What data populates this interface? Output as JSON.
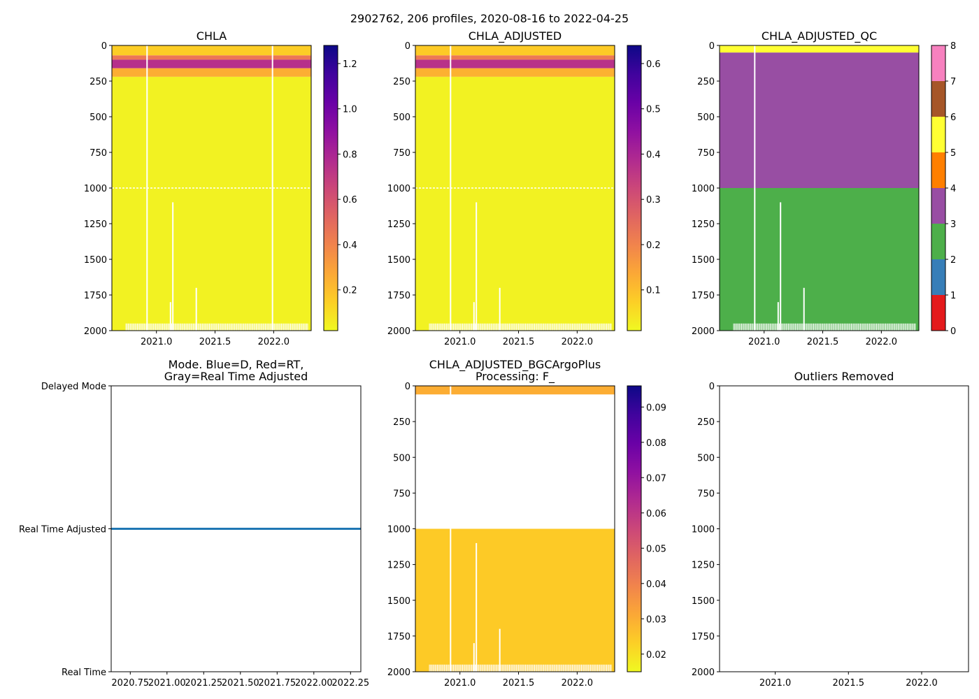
{
  "figure": {
    "title": "2902762, 206 profiles, 2020-08-16 to 2022-04-25"
  },
  "chart_data": [
    {
      "id": "chla",
      "type": "heatmap",
      "title": "CHLA",
      "xlim": [
        2020.62,
        2022.32
      ],
      "ylim": [
        2000,
        0
      ],
      "xticks": [
        "2021.0",
        "2021.5",
        "2022.0"
      ],
      "xtick_values": [
        2021.0,
        2021.5,
        2022.0
      ],
      "yticks": [
        "0",
        "250",
        "500",
        "750",
        "1000",
        "1250",
        "1500",
        "1750",
        "2000"
      ],
      "ytick_values": [
        0,
        250,
        500,
        750,
        1000,
        1250,
        1500,
        1750,
        2000
      ],
      "colormap": "plasma_r",
      "colorbar": {
        "min": 0.02,
        "max": 1.28,
        "ticks": [
          "0.2",
          "0.4",
          "0.6",
          "0.8",
          "1.0",
          "1.2"
        ],
        "tick_values": [
          0.2,
          0.4,
          0.6,
          0.8,
          1.0,
          1.2
        ]
      },
      "bands": [
        {
          "depth_from": 0,
          "depth_to": 70,
          "value": 0.15
        },
        {
          "depth_from": 70,
          "depth_to": 100,
          "value": 0.45
        },
        {
          "depth_from": 100,
          "depth_to": 160,
          "value": 0.75
        },
        {
          "depth_from": 160,
          "depth_to": 220,
          "value": 0.25
        },
        {
          "depth_from": 220,
          "depth_to": 2000,
          "value": 0.04
        }
      ],
      "missing_profiles": [
        2020.92,
        2021.99
      ],
      "missing_segments": [
        {
          "x": 2021.14,
          "depth_from": 1100,
          "depth_to": 2000
        },
        {
          "x": 2021.12,
          "depth_from": 1800,
          "depth_to": 2000
        },
        {
          "x": 2021.34,
          "depth_from": 1700,
          "depth_to": 2000
        }
      ],
      "gap_depth": 1000
    },
    {
      "id": "chla_adjusted",
      "type": "heatmap",
      "title": "CHLA_ADJUSTED",
      "xlim": [
        2020.62,
        2022.32
      ],
      "ylim": [
        2000,
        0
      ],
      "xticks": [
        "2021.0",
        "2021.5",
        "2022.0"
      ],
      "xtick_values": [
        2021.0,
        2021.5,
        2022.0
      ],
      "yticks": [
        "0",
        "250",
        "500",
        "750",
        "1000",
        "1250",
        "1500",
        "1750",
        "2000"
      ],
      "ytick_values": [
        0,
        250,
        500,
        750,
        1000,
        1250,
        1500,
        1750,
        2000
      ],
      "colormap": "plasma_r",
      "colorbar": {
        "min": 0.01,
        "max": 0.64,
        "ticks": [
          "0.1",
          "0.2",
          "0.3",
          "0.4",
          "0.5",
          "0.6"
        ],
        "tick_values": [
          0.1,
          0.2,
          0.3,
          0.4,
          0.5,
          0.6
        ]
      },
      "bands": [
        {
          "depth_from": 0,
          "depth_to": 70,
          "value": 0.08
        },
        {
          "depth_from": 70,
          "depth_to": 100,
          "value": 0.22
        },
        {
          "depth_from": 100,
          "depth_to": 160,
          "value": 0.37
        },
        {
          "depth_from": 160,
          "depth_to": 220,
          "value": 0.12
        },
        {
          "depth_from": 220,
          "depth_to": 2000,
          "value": 0.02
        }
      ],
      "missing_profiles": [
        2020.92
      ],
      "missing_segments": [
        {
          "x": 2021.14,
          "depth_from": 1100,
          "depth_to": 2000
        },
        {
          "x": 2021.12,
          "depth_from": 1800,
          "depth_to": 2000
        },
        {
          "x": 2021.34,
          "depth_from": 1700,
          "depth_to": 2000
        }
      ],
      "gap_depth": 1000
    },
    {
      "id": "chla_adjusted_qc",
      "type": "heatmap",
      "title": "CHLA_ADJUSTED_QC",
      "xlim": [
        2020.62,
        2022.32
      ],
      "ylim": [
        2000,
        0
      ],
      "xticks": [
        "2021.0",
        "2021.5",
        "2022.0"
      ],
      "xtick_values": [
        2021.0,
        2021.5,
        2022.0
      ],
      "yticks": [
        "0",
        "250",
        "500",
        "750",
        "1000",
        "1250",
        "1500",
        "1750",
        "2000"
      ],
      "ytick_values": [
        0,
        250,
        500,
        750,
        1000,
        1250,
        1500,
        1750,
        2000
      ],
      "colormap": "qc_categorical",
      "colorbar": {
        "min": 0,
        "max": 8,
        "ticks": [
          "0",
          "1",
          "2",
          "3",
          "4",
          "5",
          "6",
          "7",
          "8"
        ],
        "tick_values": [
          0,
          1,
          2,
          3,
          4,
          5,
          6,
          7,
          8
        ],
        "categories": [
          {
            "flag": 0,
            "color": "#e41a1c"
          },
          {
            "flag": 1,
            "color": "#377eb8"
          },
          {
            "flag": 2,
            "color": "#4daf4a"
          },
          {
            "flag": 3,
            "color": "#984ea3"
          },
          {
            "flag": 4,
            "color": "#ff7f00"
          },
          {
            "flag": 5,
            "color": "#ffff33"
          },
          {
            "flag": 6,
            "color": "#a65628"
          },
          {
            "flag": 7,
            "color": "#f781bf"
          },
          {
            "flag": 8,
            "color": "#999999"
          }
        ]
      },
      "qc_layers": [
        {
          "depth_from": 0,
          "depth_to": 50,
          "flag": 5
        },
        {
          "depth_from": 50,
          "depth_to": 1000,
          "flag": 3
        },
        {
          "depth_from": 1000,
          "depth_to": 2000,
          "flag": 2
        }
      ],
      "missing_profiles": [
        2020.92
      ],
      "missing_segments": [
        {
          "x": 2021.14,
          "depth_from": 1100,
          "depth_to": 2000
        },
        {
          "x": 2021.12,
          "depth_from": 1800,
          "depth_to": 2000
        },
        {
          "x": 2021.34,
          "depth_from": 1700,
          "depth_to": 2000
        }
      ]
    },
    {
      "id": "mode",
      "type": "line",
      "title": "Mode. Blue=D, Red=RT,\nGray=Real Time Adjusted",
      "xlim": [
        2020.62,
        2022.32
      ],
      "xticks": [
        "2020.75",
        "2021.00",
        "2021.25",
        "2021.50",
        "2021.75",
        "2022.00",
        "2022.25"
      ],
      "xtick_values": [
        2020.75,
        2021.0,
        2021.25,
        2021.5,
        2021.75,
        2022.0,
        2022.25
      ],
      "yticks": [
        "Real Time",
        "Real Time Adjusted",
        "Delayed Mode"
      ],
      "ytick_values": [
        0,
        1,
        2
      ],
      "ylim": [
        0,
        2
      ],
      "series": [
        {
          "name": "mode",
          "color": "#1f77b4",
          "x": [
            2020.62,
            2022.32
          ],
          "y": [
            1,
            1
          ]
        }
      ]
    },
    {
      "id": "bgcargoplus",
      "type": "heatmap",
      "title": "CHLA_ADJUSTED_BGCArgoPlus\nProcessing: F_",
      "xlim": [
        2020.62,
        2022.32
      ],
      "ylim": [
        2000,
        0
      ],
      "xticks": [
        "2021.0",
        "2021.5",
        "2022.0"
      ],
      "xtick_values": [
        2021.0,
        2021.5,
        2022.0
      ],
      "yticks": [
        "0",
        "250",
        "500",
        "750",
        "1000",
        "1250",
        "1500",
        "1750",
        "2000"
      ],
      "ytick_values": [
        0,
        250,
        500,
        750,
        1000,
        1250,
        1500,
        1750,
        2000
      ],
      "colormap": "plasma_r",
      "colorbar": {
        "min": 0.015,
        "max": 0.096,
        "ticks": [
          "0.02",
          "0.03",
          "0.04",
          "0.05",
          "0.06",
          "0.07",
          "0.08",
          "0.09"
        ],
        "tick_values": [
          0.02,
          0.03,
          0.04,
          0.05,
          0.06,
          0.07,
          0.08,
          0.09
        ]
      },
      "bands": [
        {
          "depth_from": 0,
          "depth_to": 60,
          "value": 0.03
        },
        {
          "depth_from": 1000,
          "depth_to": 2000,
          "value": 0.024
        }
      ],
      "missing_profiles": [
        2020.92
      ],
      "missing_segments": [
        {
          "x": 2021.14,
          "depth_from": 1100,
          "depth_to": 2000
        },
        {
          "x": 2021.12,
          "depth_from": 1800,
          "depth_to": 2000
        },
        {
          "x": 2021.34,
          "depth_from": 1700,
          "depth_to": 2000
        }
      ]
    },
    {
      "id": "outliers",
      "type": "scatter",
      "title": "Outliers Removed",
      "xlim": [
        2020.62,
        2022.32
      ],
      "ylim": [
        2000,
        0
      ],
      "xticks": [
        "2021.0",
        "2021.5",
        "2022.0"
      ],
      "xtick_values": [
        2021.0,
        2021.5,
        2022.0
      ],
      "yticks": [
        "0",
        "250",
        "500",
        "750",
        "1000",
        "1250",
        "1500",
        "1750",
        "2000"
      ],
      "ytick_values": [
        0,
        250,
        500,
        750,
        1000,
        1250,
        1500,
        1750,
        2000
      ],
      "series": []
    }
  ]
}
